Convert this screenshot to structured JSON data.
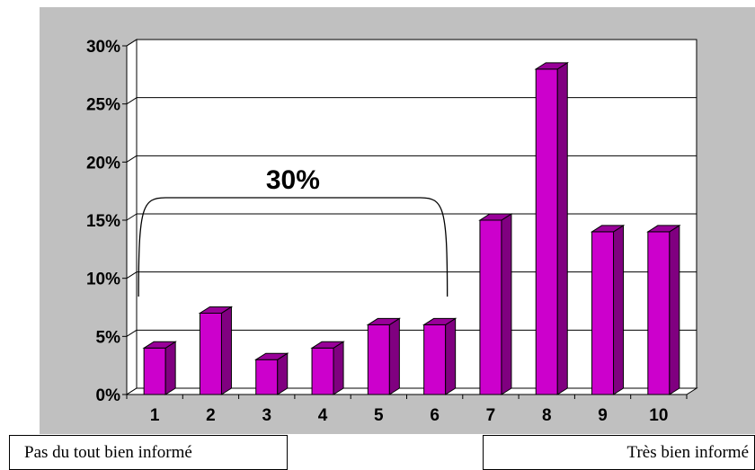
{
  "chart_data": {
    "type": "bar",
    "categories": [
      "1",
      "2",
      "3",
      "4",
      "5",
      "6",
      "7",
      "8",
      "9",
      "10"
    ],
    "values": [
      4,
      7,
      3,
      4,
      6,
      6,
      15,
      28,
      14,
      14
    ],
    "ylim": [
      0,
      30
    ],
    "yticks": [
      0,
      5,
      10,
      15,
      20,
      25,
      30
    ],
    "ytick_labels": [
      "0%",
      "5%",
      "10%",
      "15%",
      "20%",
      "25%",
      "30%"
    ],
    "grid": true,
    "bar_color": "#cc00cc",
    "bar_side_color": "#800080",
    "bar_top_color": "#990099",
    "annotation": {
      "text": "30%",
      "span_categories": [
        "1",
        "6"
      ]
    }
  },
  "captions": {
    "left": "Pas du tout bien informé",
    "right": "Très bien informé"
  }
}
